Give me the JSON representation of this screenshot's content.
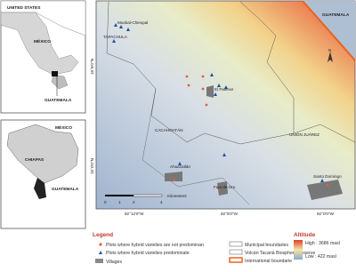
{
  "inset_top": {
    "labels": [
      "UNITED STATES",
      "MÉXICO",
      "GUATEMALA"
    ]
  },
  "inset_bottom": {
    "labels": [
      "MÉXICO",
      "CHIAPAS",
      "GUATEMALA"
    ]
  },
  "map": {
    "country_label": "GUATEMALA",
    "places": [
      "Muxbal-Chiexpal",
      "TAPACHULA",
      "El Palenar",
      "CACAHOATÁN",
      "UNIÓN JUÁREZ",
      "Ahuacatlán",
      "Faja de Oro",
      "Santo Domingo"
    ],
    "north": "N",
    "scale": {
      "unit": "Kilometers",
      "ticks": [
        "0",
        "1",
        "2",
        "4"
      ]
    },
    "lon_labels": [
      "92°12'0\"W",
      "92°6'0\"W",
      "92°0'0\"W"
    ],
    "lat_labels": [
      "15°6'0\"N",
      "15°0'0\"N"
    ]
  },
  "legend": {
    "title": "Legend",
    "items": [
      "Plots where hybrid varieties are not predominan",
      "Plots where hybrid varieties predominate",
      "Villages",
      "Municipal boundaries",
      "Volcán Tacaná Biosphere Reserve",
      "International boundarie"
    ],
    "altitude": {
      "title": "Altitude",
      "high": "High : 3686 masl",
      "low": "Low : 422 masl"
    }
  }
}
